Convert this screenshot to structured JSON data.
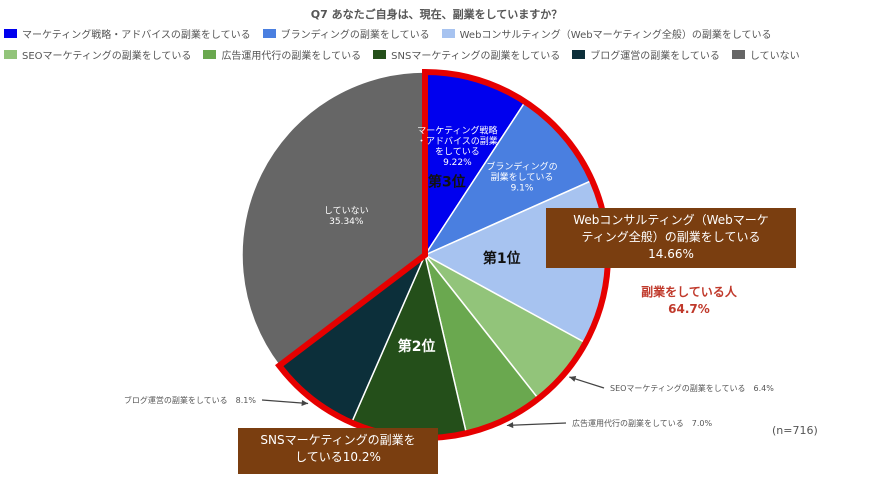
{
  "chart_data": {
    "type": "pie",
    "title": "Q7 あなたご自身は、現在、副業をしていますか？",
    "legend_position": "top",
    "slices": [
      {
        "legend": "マーケティング戦略・アドバイスの副業をしている",
        "label_lines": [
          "マーケティング戦略",
          "・アドバイスの副業",
          "をしている"
        ],
        "value_label": "9.22%",
        "value": 9.22,
        "color": "#0000ee"
      },
      {
        "legend": "ブランディングの副業をしている",
        "label_lines": [
          "ブランディングの",
          "副業をしている"
        ],
        "value_label": "9.1%",
        "value": 9.1,
        "color": "#4a7fe0"
      },
      {
        "legend": "Webコンサルティング（Webマーケティング全般）の副業をしている",
        "label_lines": [],
        "value_label": "",
        "value": 14.66,
        "color": "#a7c3f0"
      },
      {
        "legend": "SEOマーケティングの副業をしている",
        "label_lines": [],
        "value_label": "",
        "value": 6.4,
        "color": "#92c47a"
      },
      {
        "legend": "広告運用代行の副業をしている",
        "label_lines": [],
        "value_label": "",
        "value": 7.0,
        "color": "#6aa84f"
      },
      {
        "legend": "SNSマーケティングの副業をしている",
        "label_lines": [],
        "value_label": "",
        "value": 10.2,
        "color": "#244f1a"
      },
      {
        "legend": "ブログ運営の副業をしている",
        "label_lines": [],
        "value_label": "",
        "value": 8.1,
        "color": "#0c2f3a"
      },
      {
        "legend": "していない",
        "label_lines": [
          "していない"
        ],
        "value_label": "35.34%",
        "value": 35.34,
        "color": "#666666"
      }
    ],
    "rank_labels": [
      "第3位",
      "第1位",
      "第2位"
    ],
    "outer_labels": [
      {
        "text": "SEOマーケティングの副業をしている　6.4%",
        "slice": 3
      },
      {
        "text": "広告運用代行の副業をしている　7.0%",
        "slice": 4
      },
      {
        "text": "ブログ運営の副業をしている　8.1%",
        "slice": 6
      }
    ],
    "callouts": {
      "web": [
        "Webコンサルティング（Webマーケ",
        "ティング全般）の副業をしている",
        "14.66%"
      ],
      "sns": [
        "SNSマーケティングの副業を",
        "している10.2%"
      ]
    },
    "highlight_total": {
      "text": "副業をしている人",
      "value": "64.7%"
    },
    "sample_size": "(n=716)"
  }
}
